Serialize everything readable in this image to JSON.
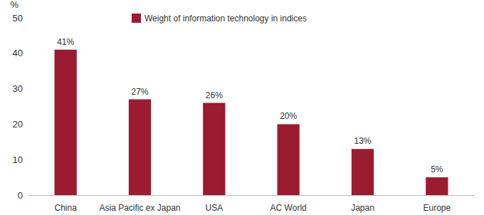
{
  "chart_data": {
    "type": "bar",
    "ylabel": "%",
    "categories": [
      "China",
      "Asia Pacific ex Japan",
      "USA",
      "AC World",
      "Japan",
      "Europe"
    ],
    "series": [
      {
        "name": "Weight of information technology in indices",
        "color": "#9b1b30",
        "values": [
          41,
          27,
          26,
          20,
          13,
          5
        ],
        "value_labels": [
          "41%",
          "27%",
          "26%",
          "20%",
          "13%",
          "5%"
        ]
      }
    ],
    "ylim": [
      0,
      50
    ],
    "yticks": [
      0,
      10,
      20,
      30,
      40,
      50
    ],
    "grid": false,
    "legend": "top",
    "data_labels": true
  }
}
